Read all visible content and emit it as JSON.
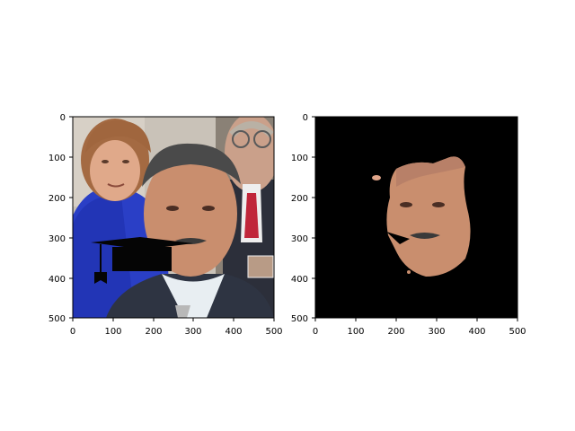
{
  "figure": {
    "background": "#ffffff",
    "axis_color": "#000000",
    "panels": [
      {
        "content": "photo of three people; a black graduation cap overlaid on the central man's mouth",
        "xlim": [
          0,
          500
        ],
        "ylim": [
          500,
          0
        ],
        "xticks": [
          "0",
          "100",
          "200",
          "300",
          "400",
          "500"
        ],
        "yticks": [
          "0",
          "100",
          "200",
          "300",
          "400",
          "500"
        ]
      },
      {
        "content": "face-segmentation mask: central man's face on black background",
        "xlim": [
          0,
          500
        ],
        "ylim": [
          500,
          0
        ],
        "xticks": [
          "0",
          "100",
          "200",
          "300",
          "400",
          "500"
        ],
        "yticks": [
          "0",
          "100",
          "200",
          "300",
          "400",
          "500"
        ]
      }
    ]
  }
}
